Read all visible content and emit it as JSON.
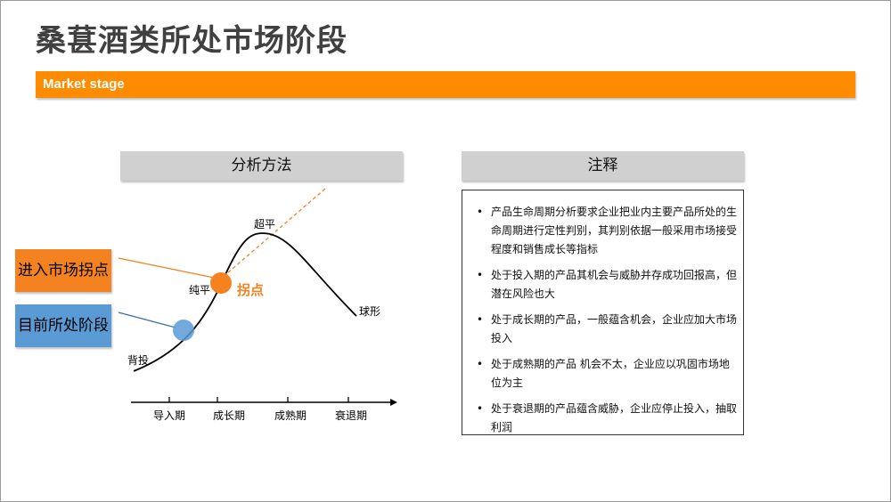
{
  "title": "桑葚酒类所处市场阶段",
  "section_label": "Market stage",
  "method_panel": {
    "title": "分析方法"
  },
  "notes_panel": {
    "title": "注释",
    "items": [
      "产品生命周期分析要求企业把业内主要产品所处的生命周期进行定性判别，其判别依据一般采用市场接受程度和销售成长等指标",
      "处于投入期的产品其机会与威胁并存成功回报高，但潜在风险也大",
      "处于成长期的产品，一般蕴含机会，企业应加大市场投入",
      "处于成熟期的产品 机会不太，企业应以巩固市场地位为主",
      "处于衰退期的产品蕴含威胁，企业应停止投入，抽取利润"
    ]
  },
  "callouts": {
    "entry_point": "进入市场拐点",
    "current_stage": "目前所处阶段"
  },
  "diagram": {
    "stages": [
      "导入期",
      "成长期",
      "成熟期",
      "衰退期"
    ],
    "curve_labels": {
      "back": "背投",
      "pure": "纯平",
      "super": "超平",
      "sphere": "球形"
    },
    "inflection_label": "拐点",
    "colors": {
      "accent": "#f58220",
      "current": "#5b9bd5",
      "bar": "#ff8c00",
      "header": "#d0d0d0"
    }
  }
}
